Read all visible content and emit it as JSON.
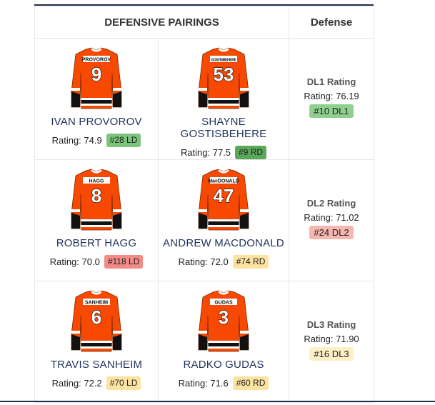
{
  "headers": {
    "pairings": "DEFENSIVE PAIRINGS",
    "defense": "Defense"
  },
  "colors": {
    "jersey_orange": "#f74902",
    "jersey_black": "#111111",
    "badge_green": "#7bc47b",
    "badge_darkgreen": "#5aa85a",
    "badge_red": "#f29a95",
    "badge_yellow": "#fbe7a6",
    "name_color": "#22345e"
  },
  "pairs": [
    {
      "players": [
        {
          "jersey_name": "PROVOROV",
          "number": "9",
          "name": "IVAN PROVOROV",
          "rating": "Rating: 74.9",
          "rank": "#28 LD",
          "badge_color": "#7bc47b"
        },
        {
          "jersey_name": "GOSTISBEHERE",
          "number": "53",
          "name": "SHAYNE GOSTISBEHERE",
          "rating": "Rating: 77.5",
          "rank": "#9 RD",
          "badge_color": "#5aa85a"
        }
      ],
      "dl": {
        "title": "DL1 Rating",
        "rating": "Rating: 76.19",
        "rank": "#10 DL1",
        "badge_color": "#8fd08f"
      }
    },
    {
      "players": [
        {
          "jersey_name": "HAGG",
          "number": "8",
          "name": "ROBERT HAGG",
          "rating": "Rating: 70.0",
          "rank": "#118 LD",
          "badge_color": "#f28a86"
        },
        {
          "jersey_name": "MacDONALD",
          "number": "47",
          "name": "ANDREW MACDONALD",
          "rating": "Rating: 72.0",
          "rank": "#74 RD",
          "badge_color": "#fde3a0"
        }
      ],
      "dl": {
        "title": "DL2 Rating",
        "rating": "Rating: 71.02",
        "rank": "#24 DL2",
        "badge_color": "#f7b7b1"
      }
    },
    {
      "players": [
        {
          "jersey_name": "SANHEIM",
          "number": "6",
          "name": "TRAVIS SANHEIM",
          "rating": "Rating: 72.2",
          "rank": "#70 LD",
          "badge_color": "#fde3a0"
        },
        {
          "jersey_name": "GUDAS",
          "number": "3",
          "name": "RADKO GUDAS",
          "rating": "Rating: 71.6",
          "rank": "#60 RD",
          "badge_color": "#fde3a0"
        }
      ],
      "dl": {
        "title": "DL3 Rating",
        "rating": "Rating: 71.90",
        "rank": "#16 DL3",
        "badge_color": "#fdf0c6"
      }
    }
  ]
}
